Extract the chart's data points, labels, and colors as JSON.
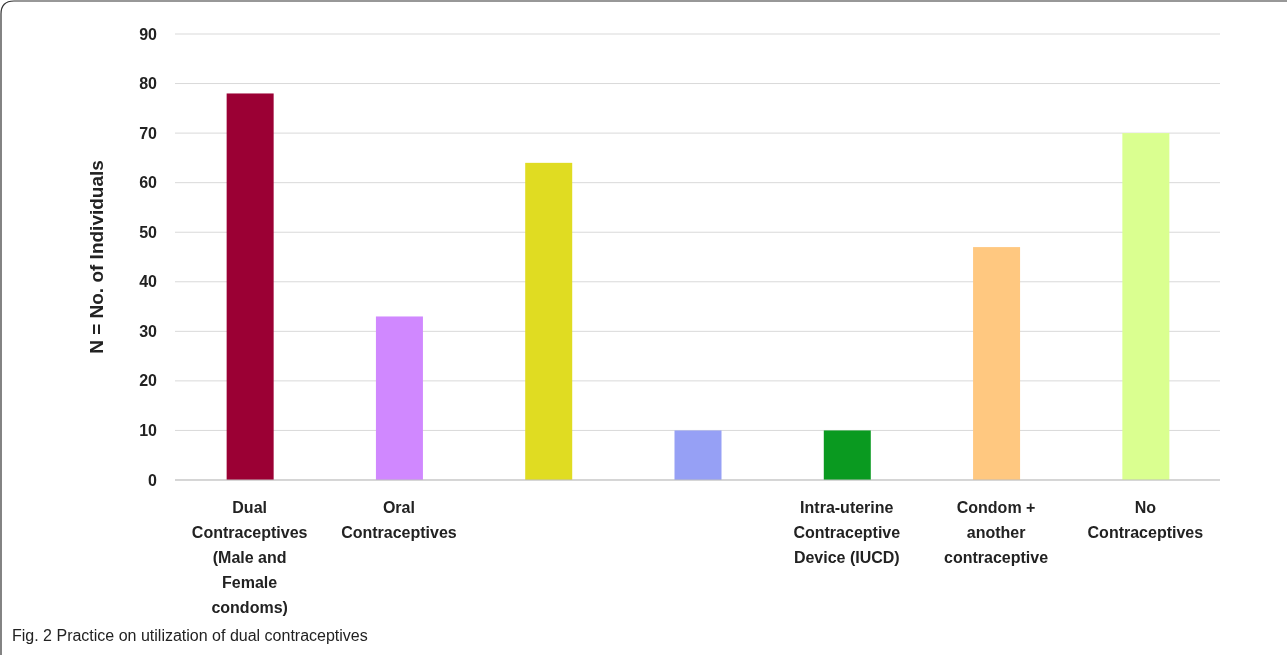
{
  "chart_data": {
    "type": "bar",
    "ylabel": "N = No. of Individuals",
    "categories": [
      "Dual Contraceptives (Male and Female condoms)",
      "Oral Contraceptives",
      null,
      null,
      "Intra-uterine Contraceptive Device (IUCD)",
      "Condom + another contraceptive",
      "No Contraceptives"
    ],
    "values": [
      78,
      33,
      64,
      10,
      10,
      47,
      70
    ],
    "colors": [
      "#9b0034",
      "#d088ff",
      "#e0dc22",
      "#96a0f5",
      "#0a9a20",
      "#ffc880",
      "#daff90"
    ],
    "ylim": [
      0,
      90
    ],
    "yticks": [
      0,
      10,
      20,
      30,
      40,
      50,
      60,
      70,
      80,
      90
    ],
    "grid": "y",
    "annotations": [
      "Fig. 2 Practice on utilization of dual contraceptives"
    ]
  }
}
